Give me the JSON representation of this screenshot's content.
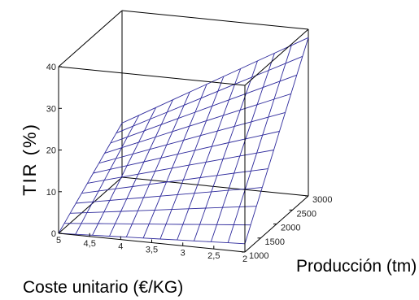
{
  "chart_data": {
    "type": "surface3d",
    "zlabel": "TIR (%)",
    "xlabel": "Coste unitario (€/KG)",
    "ylabel": "Producción (tm)",
    "x_ticks": [
      "5",
      "4,5",
      "4",
      "3,5",
      "3",
      "2,5",
      "2"
    ],
    "y_ticks": [
      "1000",
      "1500",
      "2000",
      "2500",
      "3000"
    ],
    "z_ticks": [
      "0",
      "10",
      "20",
      "30",
      "40"
    ],
    "x_range": [
      2,
      5
    ],
    "y_range": [
      1000,
      3000
    ],
    "z_range": [
      0,
      40
    ],
    "grid_steps": 11,
    "corner_values": [
      {
        "coste": 5,
        "produccion": 1000,
        "tir": 0
      },
      {
        "coste": 2,
        "produccion": 1000,
        "tir": 2
      },
      {
        "coste": 5,
        "produccion": 3000,
        "tir": 13
      },
      {
        "coste": 2,
        "produccion": 3000,
        "tir": 38
      }
    ],
    "surface_color": "#2e2a9c",
    "box_color": "#000000"
  }
}
